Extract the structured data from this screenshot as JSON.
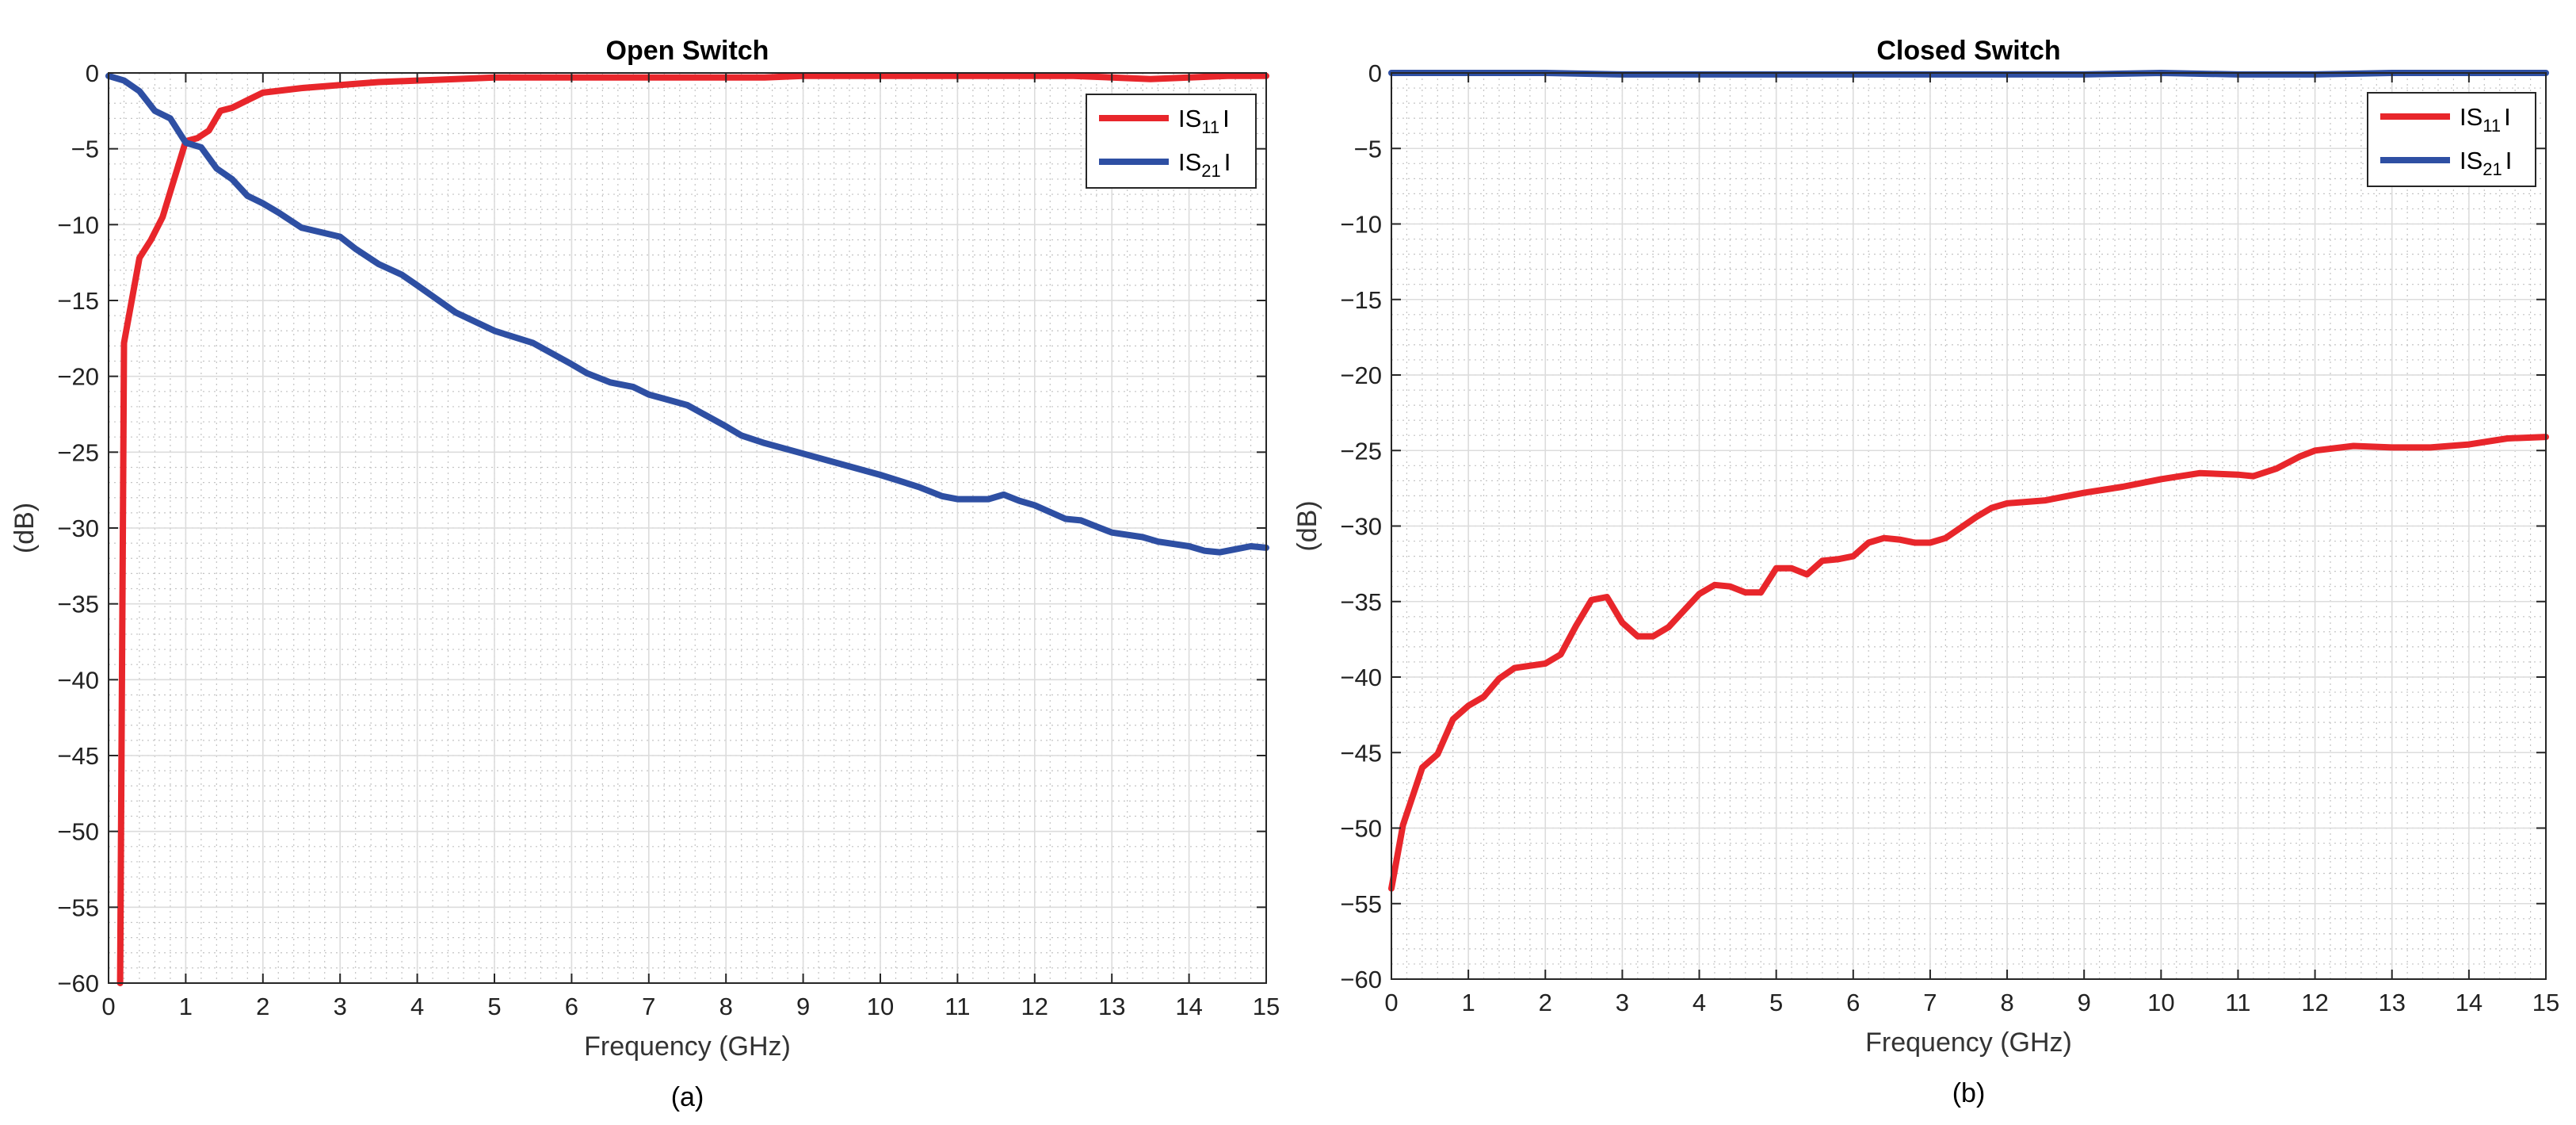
{
  "chart_data": [
    {
      "type": "line",
      "title": "Open Switch",
      "xlabel": "Frequency (GHz)",
      "ylabel": "(dB)",
      "caption": "(a)",
      "xlim": [
        0,
        15
      ],
      "ylim": [
        -60,
        0
      ],
      "xticks": [
        0,
        1,
        2,
        3,
        4,
        5,
        6,
        7,
        8,
        9,
        10,
        11,
        12,
        13,
        14,
        15
      ],
      "yticks": [
        0,
        -5,
        -10,
        -15,
        -20,
        -25,
        -30,
        -35,
        -40,
        -45,
        -50,
        -55,
        -60
      ],
      "grid": true,
      "minor_grid": true,
      "legend_position": "top-right",
      "series": [
        {
          "name": "|S11|",
          "legend_main": "IS",
          "legend_sub": "11",
          "legend_end": "I",
          "color": "#e8262b",
          "x": [
            0.15,
            0.2,
            0.4,
            0.55,
            0.7,
            0.85,
            1.0,
            1.15,
            1.3,
            1.45,
            1.6,
            1.8,
            2.0,
            2.5,
            3.0,
            3.5,
            4.0,
            4.5,
            5.0,
            6.0,
            7.0,
            8.0,
            8.5,
            9.0,
            10.0,
            11.0,
            12.0,
            12.5,
            13.0,
            13.5,
            14.0,
            14.5,
            15.0
          ],
          "values": [
            -60,
            -17.8,
            -12.2,
            -11.0,
            -9.5,
            -7.0,
            -4.5,
            -4.3,
            -3.8,
            -2.5,
            -2.3,
            -1.8,
            -1.3,
            -1.0,
            -0.8,
            -0.6,
            -0.5,
            -0.4,
            -0.3,
            -0.3,
            -0.3,
            -0.3,
            -0.3,
            -0.2,
            -0.2,
            -0.2,
            -0.2,
            -0.2,
            -0.3,
            -0.4,
            -0.3,
            -0.2,
            -0.2
          ]
        },
        {
          "name": "|S21|",
          "legend_main": "IS",
          "legend_sub": "21",
          "legend_end": "I",
          "color": "#2e4fa3",
          "x": [
            0.0,
            0.2,
            0.4,
            0.6,
            0.8,
            1.0,
            1.2,
            1.4,
            1.6,
            1.8,
            2.0,
            2.2,
            2.5,
            3.0,
            3.2,
            3.5,
            3.8,
            4.0,
            4.5,
            5.0,
            5.5,
            6.0,
            6.2,
            6.5,
            6.8,
            7.0,
            7.5,
            8.0,
            8.2,
            8.5,
            9.0,
            9.5,
            10.0,
            10.5,
            10.8,
            11.0,
            11.2,
            11.4,
            11.6,
            11.8,
            12.0,
            12.4,
            12.6,
            12.8,
            13.0,
            13.4,
            13.6,
            14.0,
            14.2,
            14.4,
            14.6,
            14.8,
            15.0
          ],
          "values": [
            -0.2,
            -0.5,
            -1.2,
            -2.5,
            -3.0,
            -4.6,
            -4.9,
            -6.3,
            -7.0,
            -8.1,
            -8.6,
            -9.2,
            -10.2,
            -10.8,
            -11.6,
            -12.6,
            -13.3,
            -14.0,
            -15.8,
            -17.0,
            -17.8,
            -19.2,
            -19.8,
            -20.4,
            -20.7,
            -21.2,
            -21.9,
            -23.3,
            -23.9,
            -24.4,
            -25.1,
            -25.8,
            -26.5,
            -27.3,
            -27.9,
            -28.1,
            -28.1,
            -28.1,
            -27.8,
            -28.2,
            -28.5,
            -29.4,
            -29.5,
            -29.9,
            -30.3,
            -30.6,
            -30.9,
            -31.2,
            -31.5,
            -31.6,
            -31.4,
            -31.2,
            -31.3
          ]
        }
      ]
    },
    {
      "type": "line",
      "title": "Closed Switch",
      "xlabel": "Frequency (GHz)",
      "ylabel": "(dB)",
      "caption": "(b)",
      "xlim": [
        0,
        15
      ],
      "ylim": [
        -60,
        0
      ],
      "xticks": [
        0,
        1,
        2,
        3,
        4,
        5,
        6,
        7,
        8,
        9,
        10,
        11,
        12,
        13,
        14,
        15
      ],
      "yticks": [
        0,
        -5,
        -10,
        -15,
        -20,
        -25,
        -30,
        -35,
        -40,
        -45,
        -50,
        -55,
        -60
      ],
      "grid": true,
      "minor_grid": true,
      "legend_position": "top-right",
      "series": [
        {
          "name": "|S11|",
          "legend_main": "IS",
          "legend_sub": "11",
          "legend_end": "I",
          "color": "#e8262b",
          "x": [
            0.0,
            0.15,
            0.4,
            0.6,
            0.8,
            1.0,
            1.2,
            1.4,
            1.6,
            2.0,
            2.2,
            2.4,
            2.6,
            2.8,
            3.0,
            3.2,
            3.4,
            3.6,
            3.8,
            4.0,
            4.2,
            4.4,
            4.6,
            4.8,
            5.0,
            5.2,
            5.4,
            5.6,
            5.8,
            6.0,
            6.2,
            6.4,
            6.6,
            6.8,
            7.0,
            7.2,
            7.4,
            7.6,
            7.8,
            8.0,
            8.5,
            9.0,
            9.5,
            10.0,
            10.5,
            11.0,
            11.2,
            11.5,
            11.8,
            12.0,
            12.5,
            13.0,
            13.5,
            14.0,
            14.5,
            15.0
          ],
          "values": [
            -54.0,
            -49.8,
            -46.0,
            -45.1,
            -42.8,
            -41.9,
            -41.3,
            -40.1,
            -39.4,
            -39.1,
            -38.5,
            -36.6,
            -34.9,
            -34.7,
            -36.4,
            -37.3,
            -37.3,
            -36.7,
            -35.6,
            -34.5,
            -33.9,
            -34.0,
            -34.4,
            -34.4,
            -32.8,
            -32.8,
            -33.2,
            -32.3,
            -32.2,
            -32.0,
            -31.1,
            -30.8,
            -30.9,
            -31.1,
            -31.1,
            -30.8,
            -30.1,
            -29.4,
            -28.8,
            -28.5,
            -28.3,
            -27.8,
            -27.4,
            -26.9,
            -26.5,
            -26.6,
            -26.7,
            -26.2,
            -25.4,
            -25.0,
            -24.7,
            -24.8,
            -24.8,
            -24.6,
            -24.2,
            -24.1
          ]
        },
        {
          "name": "|S21|",
          "legend_main": "IS",
          "legend_sub": "21",
          "legend_end": "I",
          "color": "#2e4fa3",
          "x": [
            0,
            1,
            2,
            3,
            4,
            5,
            6,
            7,
            8,
            9,
            10,
            11,
            12,
            13,
            14,
            15
          ],
          "values": [
            0.0,
            0.0,
            0.0,
            -0.1,
            -0.1,
            -0.1,
            -0.1,
            -0.1,
            -0.1,
            -0.1,
            0.0,
            -0.1,
            -0.1,
            0.0,
            0.0,
            0.0
          ]
        }
      ]
    }
  ]
}
